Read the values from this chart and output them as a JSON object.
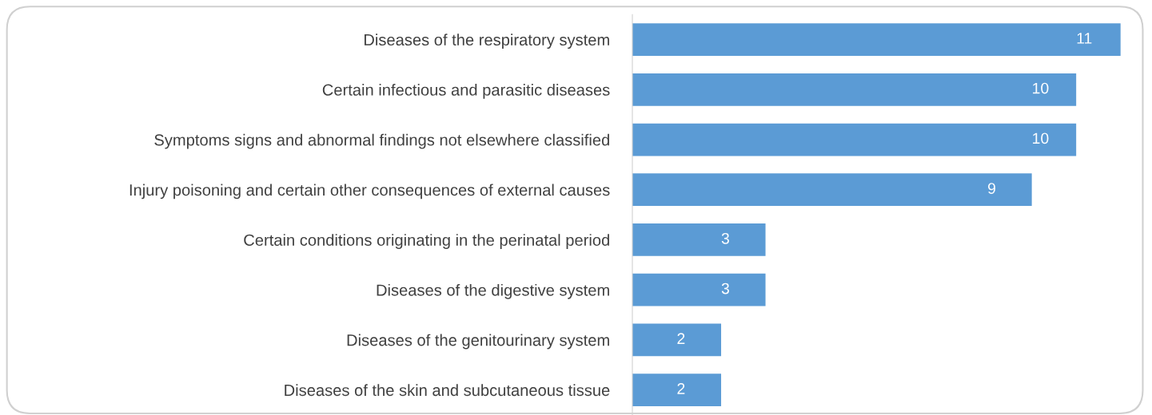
{
  "chart_data": {
    "type": "bar",
    "orientation": "horizontal",
    "categories": [
      "Diseases of the respiratory system",
      "Certain infectious and parasitic diseases",
      "Symptoms signs and abnormal findings not elsewhere classified",
      "Injury poisoning and certain other consequences of external causes",
      "Certain conditions originating in the perinatal period",
      "Diseases of the digestive system",
      "Diseases of the genitourinary system",
      "Diseases of the skin and subcutaneous tissue"
    ],
    "values": [
      11,
      10,
      10,
      9,
      3,
      3,
      2,
      2
    ],
    "color": "#5b9bd5",
    "data_labels": true,
    "grid": false,
    "legend": false,
    "tick_labels": "y"
  }
}
